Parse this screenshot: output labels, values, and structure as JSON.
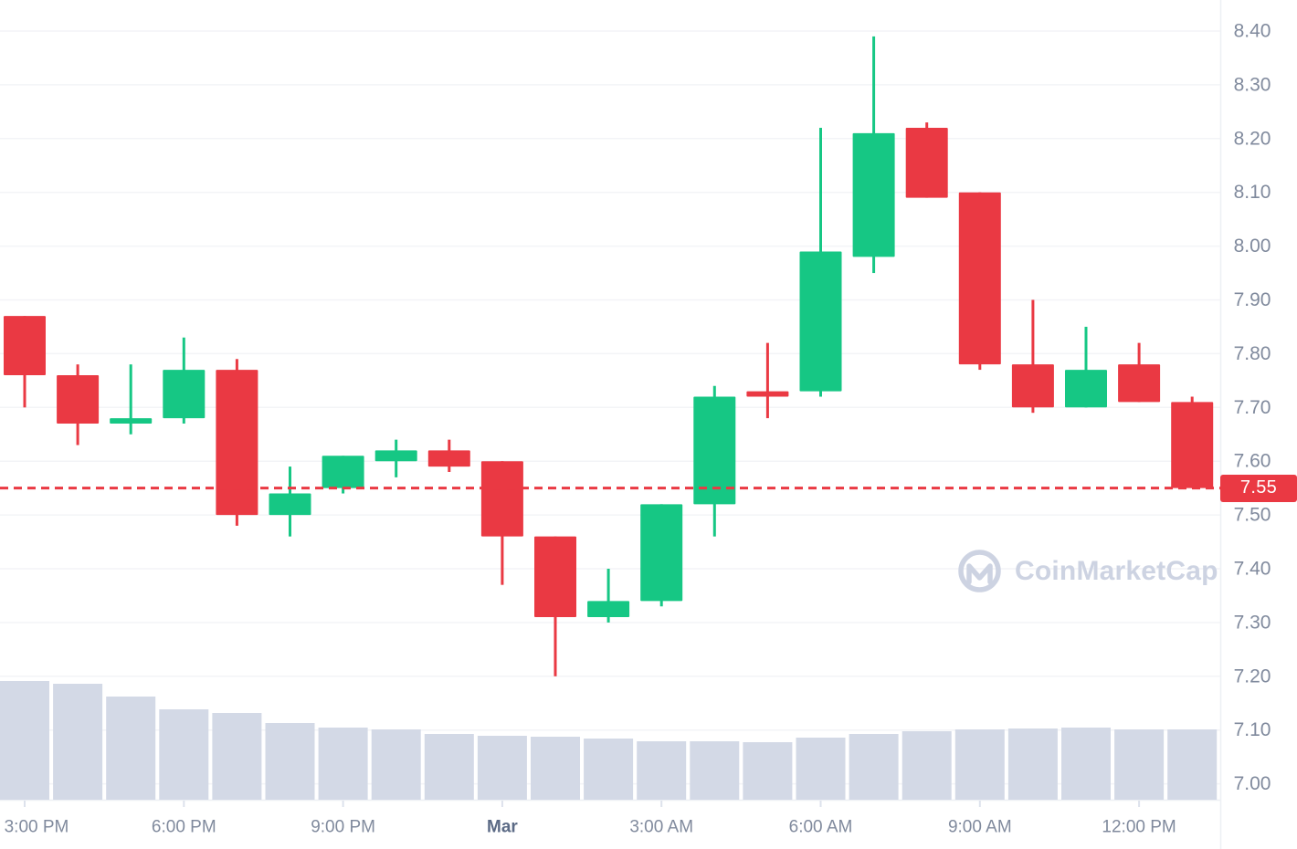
{
  "chart_data": {
    "type": "candlestick",
    "title": "",
    "grid": "horizontal",
    "legend": "none",
    "y_axis": {
      "side": "right",
      "range": [
        7.0,
        8.4
      ],
      "tick_step": 0.1,
      "ticks": [
        "8.40",
        "8.30",
        "8.20",
        "8.10",
        "8.00",
        "7.90",
        "7.80",
        "7.70",
        "7.60",
        "7.50",
        "7.40",
        "7.30",
        "7.20",
        "7.10",
        "7.00"
      ]
    },
    "x_axis": {
      "ticks": [
        {
          "label": "3:00 PM",
          "candle_index": 0,
          "bold": false
        },
        {
          "label": "6:00 PM",
          "candle_index": 3,
          "bold": false
        },
        {
          "label": "9:00 PM",
          "candle_index": 6,
          "bold": false
        },
        {
          "label": "Mar",
          "candle_index": 9,
          "bold": true
        },
        {
          "label": "3:00 AM",
          "candle_index": 12,
          "bold": false
        },
        {
          "label": "6:00 AM",
          "candle_index": 15,
          "bold": false
        },
        {
          "label": "9:00 AM",
          "candle_index": 18,
          "bold": false
        },
        {
          "label": "12:00 PM",
          "candle_index": 21,
          "bold": false
        }
      ]
    },
    "price_line": {
      "value": 7.55,
      "label": "7.55"
    },
    "candles": [
      {
        "time": "3:00 PM",
        "open": 7.87,
        "high": 7.87,
        "low": 7.7,
        "close": 7.76
      },
      {
        "time": "4:00 PM",
        "open": 7.76,
        "high": 7.78,
        "low": 7.63,
        "close": 7.67
      },
      {
        "time": "5:00 PM",
        "open": 7.67,
        "high": 7.78,
        "low": 7.65,
        "close": 7.68
      },
      {
        "time": "6:00 PM",
        "open": 7.68,
        "high": 7.83,
        "low": 7.67,
        "close": 7.77
      },
      {
        "time": "7:00 PM",
        "open": 7.77,
        "high": 7.79,
        "low": 7.48,
        "close": 7.5
      },
      {
        "time": "8:00 PM",
        "open": 7.5,
        "high": 7.59,
        "low": 7.46,
        "close": 7.54
      },
      {
        "time": "9:00 PM",
        "open": 7.55,
        "high": 7.61,
        "low": 7.54,
        "close": 7.61
      },
      {
        "time": "10:00 PM",
        "open": 7.6,
        "high": 7.64,
        "low": 7.57,
        "close": 7.62
      },
      {
        "time": "11:00 PM",
        "open": 7.62,
        "high": 7.64,
        "low": 7.58,
        "close": 7.59
      },
      {
        "time": "12:00 AM",
        "open": 7.6,
        "high": 7.6,
        "low": 7.37,
        "close": 7.46
      },
      {
        "time": "1:00 AM",
        "open": 7.46,
        "high": 7.46,
        "low": 7.2,
        "close": 7.31
      },
      {
        "time": "2:00 AM",
        "open": 7.31,
        "high": 7.4,
        "low": 7.3,
        "close": 7.34
      },
      {
        "time": "3:00 AM",
        "open": 7.34,
        "high": 7.52,
        "low": 7.33,
        "close": 7.52
      },
      {
        "time": "4:00 AM",
        "open": 7.52,
        "high": 7.74,
        "low": 7.46,
        "close": 7.72
      },
      {
        "time": "5:00 AM",
        "open": 7.73,
        "high": 7.82,
        "low": 7.68,
        "close": 7.72
      },
      {
        "time": "6:00 AM",
        "open": 7.73,
        "high": 8.22,
        "low": 7.72,
        "close": 7.99
      },
      {
        "time": "7:00 AM",
        "open": 7.98,
        "high": 8.39,
        "low": 7.95,
        "close": 8.21
      },
      {
        "time": "8:00 AM",
        "open": 8.22,
        "high": 8.23,
        "low": 8.09,
        "close": 8.09
      },
      {
        "time": "9:00 AM",
        "open": 8.1,
        "high": 8.1,
        "low": 7.77,
        "close": 7.78
      },
      {
        "time": "10:00 AM",
        "open": 7.78,
        "high": 7.9,
        "low": 7.69,
        "close": 7.7
      },
      {
        "time": "11:00 AM",
        "open": 7.7,
        "high": 7.85,
        "low": 7.7,
        "close": 7.77
      },
      {
        "time": "12:00 PM",
        "open": 7.78,
        "high": 7.82,
        "low": 7.71,
        "close": 7.71
      },
      {
        "time": "1:00 PM",
        "open": 7.71,
        "high": 7.72,
        "low": 7.55,
        "close": 7.55
      }
    ],
    "volume_relative": [
      130,
      127,
      113,
      99,
      95,
      84,
      79,
      77,
      72,
      70,
      69,
      67,
      64,
      64,
      63,
      68,
      72,
      75,
      77,
      78,
      79,
      77,
      77
    ]
  },
  "watermark": {
    "text": "CoinMarketCap"
  },
  "colors": {
    "up": "#16c784",
    "down": "#ea3943",
    "volume_bar": "#d3d9e6",
    "grid": "#f3f4f7",
    "border": "#edf0f4",
    "tick_mark": "#dde2ec",
    "axis_text": "#808a9d",
    "axis_text_strong": "#5b6a85",
    "price_line": "#ea3943",
    "badge_bg": "#ea3943",
    "badge_text": "#ffffff",
    "watermark": "#cdd3e2",
    "background": "#ffffff"
  }
}
